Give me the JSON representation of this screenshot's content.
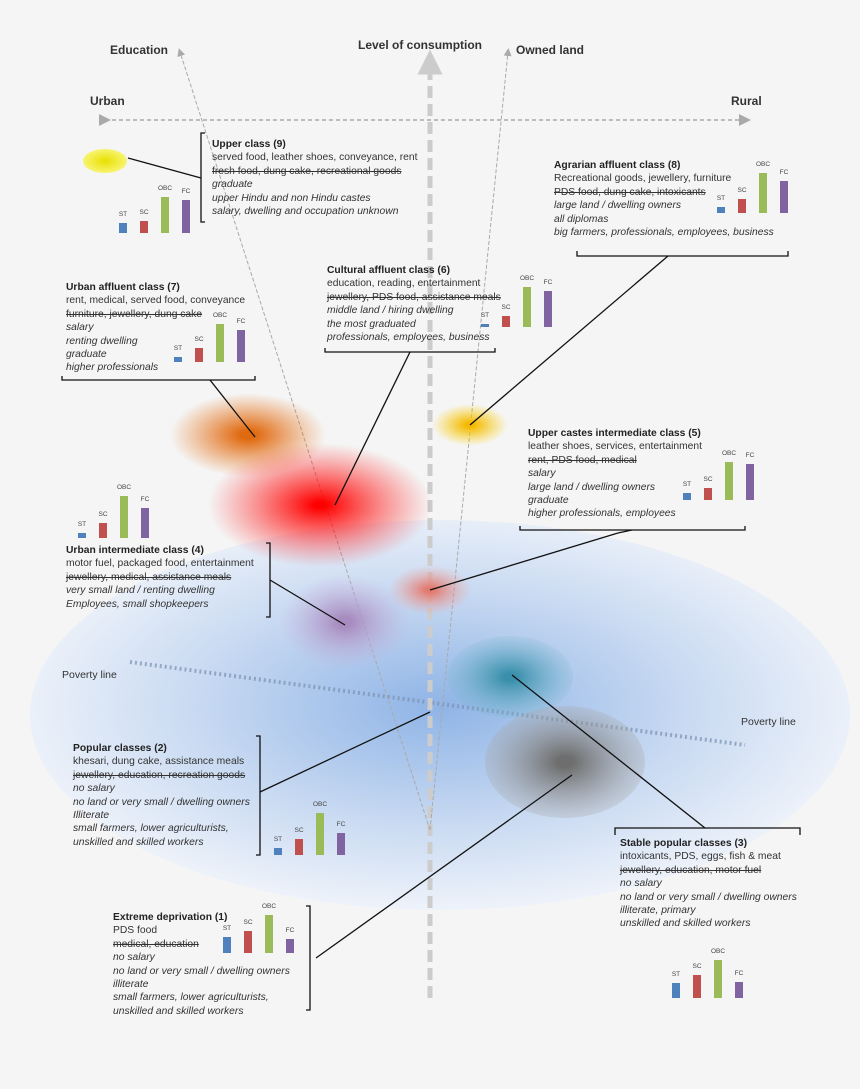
{
  "axes": {
    "vertical": "Level of consumption",
    "education": "Education",
    "owned_land": "Owned land",
    "left": "Urban",
    "right": "Rural",
    "poverty_left": "Poverty line",
    "poverty_right": "Poverty line"
  },
  "bar_labels": [
    "ST",
    "SC",
    "OBC",
    "FC"
  ],
  "bar_colors": [
    "#4f81bd",
    "#c0504d",
    "#9bbb59",
    "#8064a2"
  ],
  "classes": [
    {
      "id": "c9",
      "title": "Upper class (9)",
      "color": "#f2ec30",
      "lines": [
        "served food, leather shoes, conveyance, rent",
        "fresh food, dung cake, recreational goods",
        "graduate",
        "upper Hindu and non Hindu castes",
        "salary, dwelling and occupation unknown"
      ],
      "caste_shares": [
        10,
        12,
        36,
        33
      ]
    },
    {
      "id": "c8",
      "title": "Agrarian affluent class (8)",
      "color": "#f5c400",
      "lines": [
        "Recreational goods, jewellery, furniture",
        "PDS food, dung cake, intoxicants",
        "large land / dwelling owners",
        "all diplomas",
        "big farmers, professionals, employees, business"
      ],
      "caste_shares": [
        6,
        14,
        40,
        32
      ]
    },
    {
      "id": "c7",
      "title": "Urban affluent class (7)",
      "color": "#e87722",
      "lines": [
        "rent, medical, served food, conveyance",
        "furniture, jewellery, dung cake",
        "salary",
        "renting dwelling",
        "graduate",
        "higher professionals"
      ],
      "caste_shares": [
        5,
        14,
        38,
        32
      ]
    },
    {
      "id": "c6",
      "title": "Cultural affluent class (6)",
      "color": "#ff1010",
      "lines": [
        "education, reading, entertainment",
        "jewellery, PDS food, assistance meals",
        "middle land / hiring dwelling",
        "the most graduated",
        "professionals, employees, business"
      ],
      "caste_shares": [
        3,
        11,
        40,
        36
      ]
    },
    {
      "id": "c5",
      "title": "Upper castes intermediate class (5)",
      "color": "#e89080",
      "lines": [
        "leather shoes, services, entertainment",
        "rent, PDS food, medical",
        "salary",
        "large land / dwelling owners",
        "graduate",
        "higher professionals, employees"
      ],
      "caste_shares": [
        7,
        12,
        38,
        36
      ]
    },
    {
      "id": "c4",
      "title": "Urban intermediate class (4)",
      "color": "#b8a0cc",
      "lines": [
        "motor fuel, packaged food, entertainment",
        "jewellery, medical, assistance meals",
        "very small land / renting dwelling",
        "Employees, small shopkeepers"
      ],
      "caste_shares": [
        5,
        15,
        42,
        30
      ]
    },
    {
      "id": "c2",
      "title": "Popular classes (2)",
      "color": "#a9c4e6",
      "lines": [
        "khesari, dung cake, assistance meals",
        "jewellery, education, recreation goods",
        "no salary",
        "no land or very small / dwelling owners",
        "Illiterate",
        "small farmers, lower agriculturists,",
        "unskilled and skilled workers"
      ],
      "caste_shares": [
        7,
        16,
        42,
        22
      ]
    },
    {
      "id": "c3",
      "title": "Stable popular classes (3)",
      "color": "#4f9fb8",
      "lines": [
        "intoxicants, PDS, eggs, fish & meat",
        "jewellery, education, motor fuel",
        "no salary",
        "no land or very small / dwelling owners",
        "illiterate, primary",
        "unskilled and skilled workers"
      ],
      "caste_shares": [
        15,
        23,
        38,
        16
      ]
    },
    {
      "id": "c1",
      "title": "Extreme deprivation (1)",
      "color": "#808080",
      "lines": [
        "PDS food",
        "medical, education",
        "no salary",
        "no land or very small / dwelling owners",
        "illiterate",
        "small farmers, lower agriculturists,",
        "unskilled and skilled workers"
      ],
      "caste_shares": [
        16,
        22,
        38,
        14
      ]
    }
  ]
}
